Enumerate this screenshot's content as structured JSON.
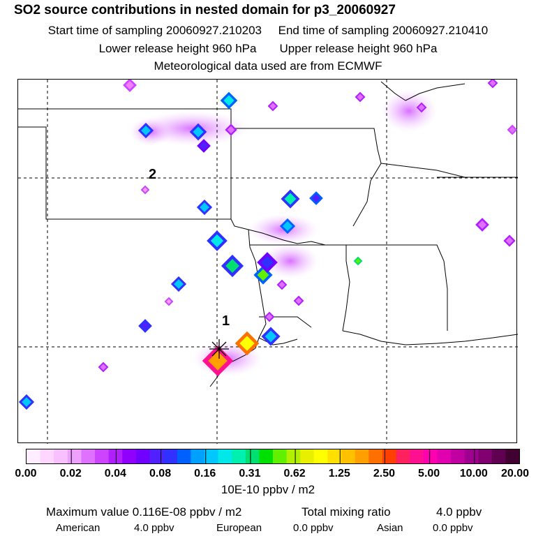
{
  "header": {
    "title": "SO2 source contributions in nested domain for p3_20060927",
    "start_label": "Start time of sampling 20060927.210203",
    "end_label": "End time of sampling 20060927.210410",
    "lower_label": "Lower release height  960 hPa",
    "upper_label": "Upper release height  960 hPa",
    "met_label": "Meteorological data used are from ECMWF"
  },
  "map": {
    "markers": [
      {
        "label": "1"
      },
      {
        "label": "2"
      }
    ]
  },
  "colorbar": {
    "ticks": [
      "0.00",
      "0.02",
      "0.04",
      "0.08",
      "0.16",
      "0.31",
      "0.62",
      "1.25",
      "2.50",
      "5.00",
      "10.00",
      "20.00"
    ],
    "colors": [
      "#ffeeff",
      "#ffd6ff",
      "#f8c0ff",
      "#eea0ff",
      "#e070ff",
      "#cc44ff",
      "#b020ff",
      "#9000ff",
      "#7000ff",
      "#5020ff",
      "#3030ff",
      "#0060ff",
      "#00a0ff",
      "#00c8ff",
      "#00e8e8",
      "#00f0b0",
      "#00e070",
      "#00e000",
      "#60f000",
      "#b0f000",
      "#e8f000",
      "#ffff00",
      "#ffe000",
      "#ffc000",
      "#ffa000",
      "#ff7000",
      "#ff4000",
      "#ff2060",
      "#ff1090",
      "#ff00b0",
      "#e000b0",
      "#c000a0",
      "#a00090",
      "#800070",
      "#600050",
      "#400030"
    ],
    "unit": "10E-10 ppbv / m2"
  },
  "summary": {
    "max_label": "Maximum value  0.116E-08 ppbv / m2",
    "total_label": "Total mixing ratio",
    "total_value": "4.0 ppbv",
    "american_label": "American",
    "american_value": "4.0 ppbv",
    "european_label": "European",
    "european_value": "0.0 ppbv",
    "asian_label": "Asian",
    "asian_value": "0.0 ppbv"
  }
}
